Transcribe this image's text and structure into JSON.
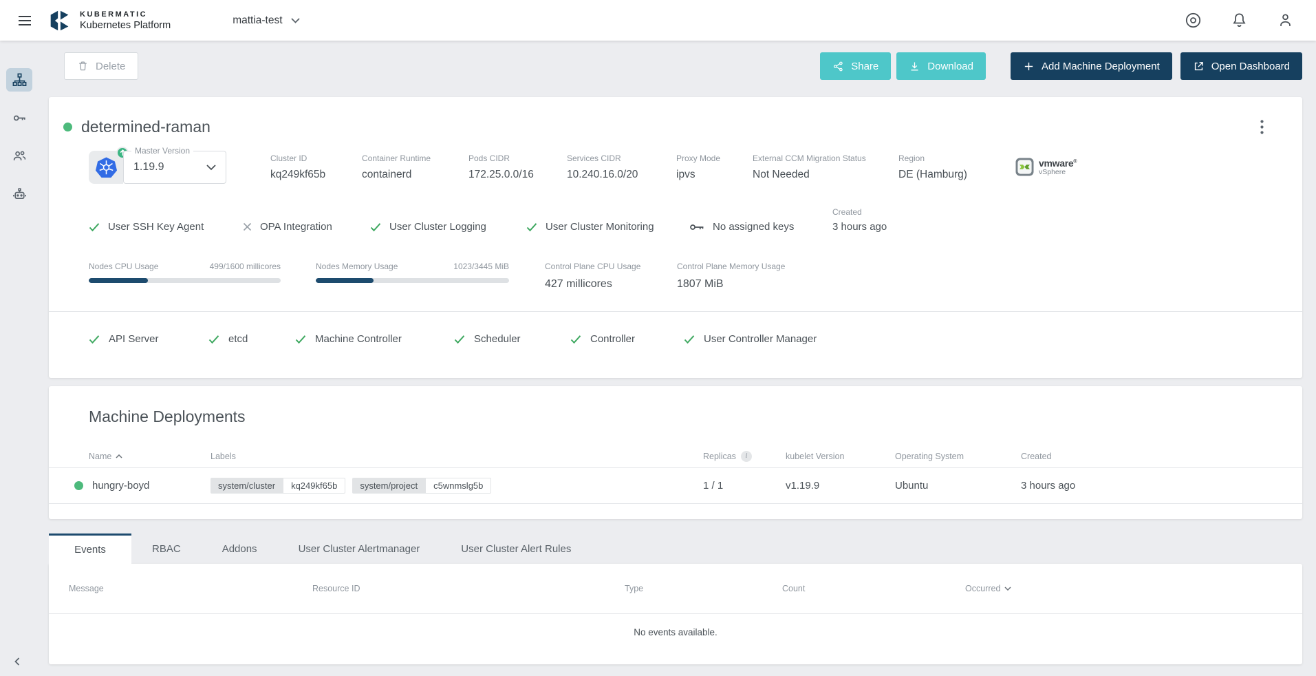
{
  "header": {
    "brand_line1": "KUBERMATIC",
    "brand_line2": "Kubernetes Platform",
    "project": "mattia-test"
  },
  "toolbar": {
    "delete": "Delete",
    "share": "Share",
    "download": "Download",
    "add_machine_deployment": "Add Machine Deployment",
    "open_dashboard": "Open Dashboard"
  },
  "sidebar": {
    "items": [
      {
        "name": "clusters",
        "active": true
      },
      {
        "name": "ssh-keys",
        "active": false
      },
      {
        "name": "members",
        "active": false
      },
      {
        "name": "service-accounts",
        "active": false
      }
    ]
  },
  "cluster": {
    "name": "determined-raman",
    "master_version": {
      "label": "Master Version",
      "value": "1.19.9"
    },
    "info": [
      {
        "label": "Cluster ID",
        "value": "kq249kf65b"
      },
      {
        "label": "Container Runtime",
        "value": "containerd"
      },
      {
        "label": "Pods CIDR",
        "value": "172.25.0.0/16"
      },
      {
        "label": "Services CIDR",
        "value": "10.240.16.0/20"
      },
      {
        "label": "Proxy Mode",
        "value": "ipvs"
      },
      {
        "label": "External CCM Migration Status",
        "value": "Not Needed"
      },
      {
        "label": "Region",
        "value": "DE (Hamburg)"
      }
    ],
    "provider": {
      "brand": "vmware",
      "product": "vSphere"
    },
    "features": [
      {
        "label": "User SSH Key Agent",
        "enabled": true
      },
      {
        "label": "OPA Integration",
        "enabled": false
      },
      {
        "label": "User Cluster Logging",
        "enabled": true
      },
      {
        "label": "User Cluster Monitoring",
        "enabled": true
      }
    ],
    "ssh_keys_status": "No assigned keys",
    "created_label": "Created",
    "created_value": "3 hours ago",
    "usage": {
      "nodes_cpu": {
        "label": "Nodes CPU Usage",
        "value": "499/1600 millicores",
        "percent": 31
      },
      "nodes_memory": {
        "label": "Nodes Memory Usage",
        "value": "1023/3445 MiB",
        "percent": 30
      },
      "control_plane_cpu": {
        "label": "Control Plane CPU Usage",
        "value": "427 millicores"
      },
      "control_plane_memory": {
        "label": "Control Plane Memory Usage",
        "value": "1807 MiB"
      }
    },
    "health": [
      {
        "label": "API Server"
      },
      {
        "label": "etcd"
      },
      {
        "label": "Machine Controller"
      },
      {
        "label": "Scheduler"
      },
      {
        "label": "Controller"
      },
      {
        "label": "User Controller Manager"
      }
    ]
  },
  "machine_deployments": {
    "title": "Machine Deployments",
    "columns": {
      "name": "Name",
      "labels": "Labels",
      "replicas": "Replicas",
      "kubelet": "kubelet Version",
      "os": "Operating System",
      "created": "Created"
    },
    "rows": [
      {
        "name": "hungry-boyd",
        "labels": [
          {
            "key": "system/cluster",
            "value": "kq249kf65b"
          },
          {
            "key": "system/project",
            "value": "c5wnmslg5b"
          }
        ],
        "replicas": "1 / 1",
        "kubelet_version": "v1.19.9",
        "operating_system": "Ubuntu",
        "created": "3 hours ago"
      }
    ]
  },
  "tabs": [
    {
      "label": "Events",
      "active": true
    },
    {
      "label": "RBAC",
      "active": false
    },
    {
      "label": "Addons",
      "active": false
    },
    {
      "label": "User Cluster Alertmanager",
      "active": false
    },
    {
      "label": "User Cluster Alert Rules",
      "active": false
    }
  ],
  "events": {
    "columns": {
      "message": "Message",
      "resource_id": "Resource ID",
      "type": "Type",
      "count": "Count",
      "occurred": "Occurred"
    },
    "empty_message": "No events available."
  },
  "colors": {
    "navy": "#16405F",
    "teal": "#4EC7C9",
    "green_dot": "#4DBA7C",
    "green_check": "#3EA860",
    "bar_fill": "#1D4B6E",
    "k8s_blue": "#326CE5"
  }
}
